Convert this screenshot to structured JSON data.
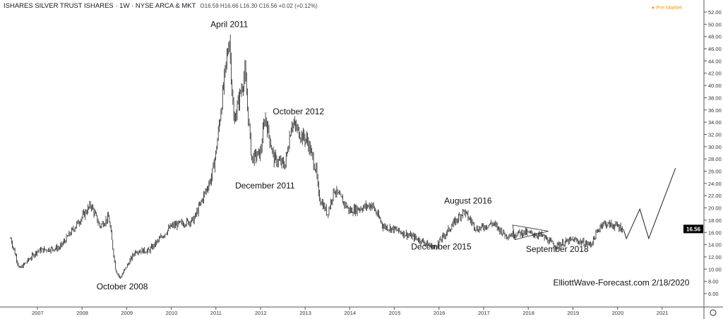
{
  "header": {
    "title": "ISHARES SILVER TRUST ISHARES · 1W · NYSE ARCA & MKT",
    "ohlc": "O16.59 H16.66 L16.30 C16.56 +0.02 (+0.12%)",
    "pre_market": "● Pre Market"
  },
  "chart_data": {
    "type": "ohlc",
    "ylim": [
      6,
      52
    ],
    "yticks": [
      "52.00",
      "50.00",
      "48.00",
      "46.00",
      "44.00",
      "42.00",
      "40.00",
      "38.00",
      "36.00",
      "34.00",
      "32.00",
      "30.00",
      "28.00",
      "26.00",
      "24.00",
      "22.00",
      "20.00",
      "18.00",
      "16.00",
      "14.00",
      "12.00",
      "10.00",
      "8.00",
      "6.00"
    ],
    "xticks": [
      "2007",
      "2008",
      "2009",
      "2010",
      "2011",
      "2012",
      "2013",
      "2014",
      "2015",
      "2016",
      "2017",
      "2018",
      "2019",
      "2020",
      "2021"
    ],
    "last_price": "16.56",
    "price_path": [
      [
        2006.4,
        15
      ],
      [
        2006.6,
        10
      ],
      [
        2007.0,
        13
      ],
      [
        2007.5,
        13.5
      ],
      [
        2008.2,
        20.5
      ],
      [
        2008.4,
        17
      ],
      [
        2008.6,
        18.5
      ],
      [
        2008.75,
        10
      ],
      [
        2008.85,
        8.5
      ],
      [
        2009.2,
        13
      ],
      [
        2009.5,
        13
      ],
      [
        2010.0,
        17
      ],
      [
        2010.5,
        18
      ],
      [
        2010.9,
        25
      ],
      [
        2011.0,
        29
      ],
      [
        2011.3,
        48
      ],
      [
        2011.4,
        34
      ],
      [
        2011.65,
        42
      ],
      [
        2011.8,
        28
      ],
      [
        2012.0,
        29
      ],
      [
        2012.1,
        35
      ],
      [
        2012.3,
        28
      ],
      [
        2012.55,
        27
      ],
      [
        2012.7,
        34
      ],
      [
        2012.9,
        32
      ],
      [
        2013.05,
        31
      ],
      [
        2013.25,
        26
      ],
      [
        2013.3,
        22
      ],
      [
        2013.5,
        19
      ],
      [
        2013.65,
        23
      ],
      [
        2014.0,
        19.5
      ],
      [
        2014.5,
        20.5
      ],
      [
        2014.75,
        17
      ],
      [
        2015.0,
        16.5
      ],
      [
        2015.5,
        15
      ],
      [
        2015.9,
        13.5
      ],
      [
        2016.55,
        19.5
      ],
      [
        2016.85,
        16.5
      ],
      [
        2017.2,
        17.5
      ],
      [
        2017.5,
        15.5
      ],
      [
        2017.9,
        16
      ],
      [
        2018.3,
        15.5
      ],
      [
        2018.6,
        13.8
      ],
      [
        2019.0,
        14.8
      ],
      [
        2019.4,
        14
      ],
      [
        2019.65,
        17.5
      ],
      [
        2020.0,
        17
      ],
      [
        2020.13,
        16.56
      ]
    ],
    "projection": [
      [
        2020.2,
        15
      ],
      [
        2020.5,
        19.8
      ],
      [
        2020.7,
        15
      ],
      [
        2021.3,
        26.5
      ]
    ],
    "annotations": [
      {
        "text": "April 2011",
        "x": 2011.3,
        "y": 49.5
      },
      {
        "text": "October 2012",
        "x": 2012.85,
        "y": 35.3
      },
      {
        "text": "December 2011",
        "x": 2012.1,
        "y": 23.2
      },
      {
        "text": "October 2008",
        "x": 2008.9,
        "y": 6.7
      },
      {
        "text": "August 2016",
        "x": 2016.65,
        "y": 20.7
      },
      {
        "text": "December  2015",
        "x": 2016.05,
        "y": 13.2
      },
      {
        "text": "September 2018",
        "x": 2018.65,
        "y": 12.8
      }
    ],
    "watermark": "ElliottWave-Forecast.com 2/18/2020"
  }
}
